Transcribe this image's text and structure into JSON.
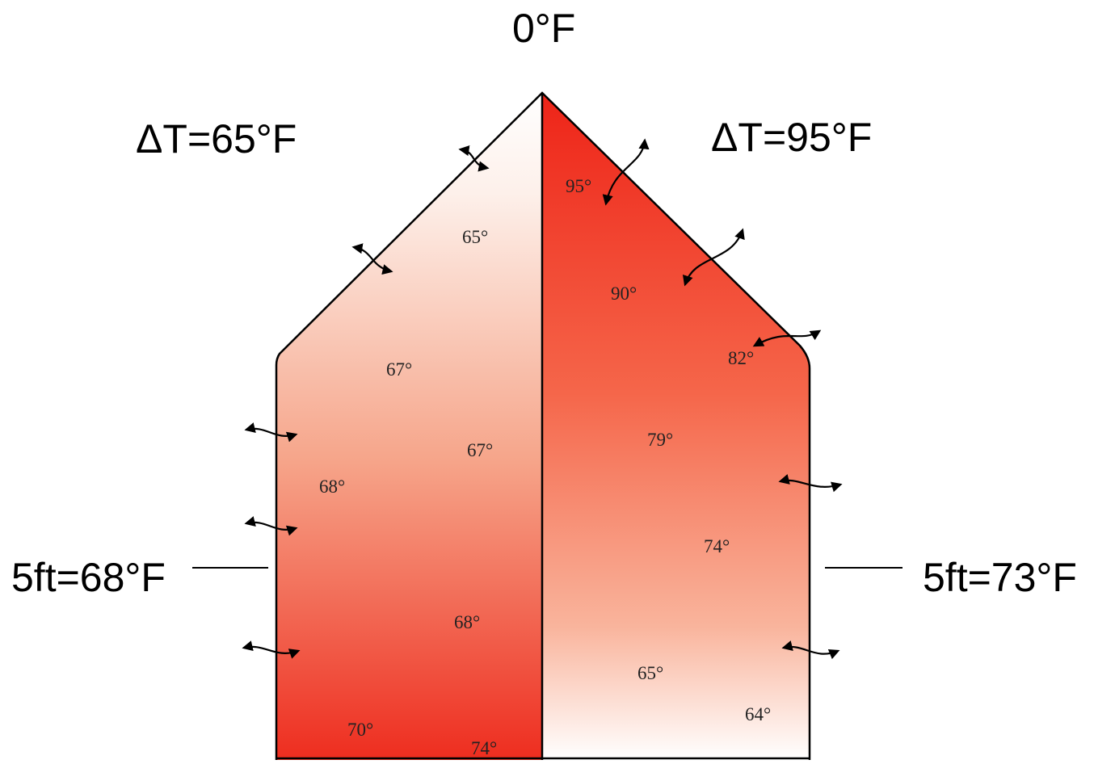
{
  "outside_temperature": "0°F",
  "left_zone": {
    "delta_t": "ΔT=65°F",
    "height_label": "5ft=68°F",
    "readings": [
      "65°",
      "67°",
      "67°",
      "68°",
      "68°",
      "70°",
      "74°"
    ]
  },
  "right_zone": {
    "delta_t": "ΔT=95°F",
    "height_label": "5ft=73°F",
    "readings": [
      "95°",
      "90°",
      "82°",
      "79°",
      "74°",
      "65°",
      "64°"
    ]
  },
  "colors": {
    "warm_red": "#ee2d1f",
    "pale": "#fdf2ec",
    "outline": "#000000"
  }
}
